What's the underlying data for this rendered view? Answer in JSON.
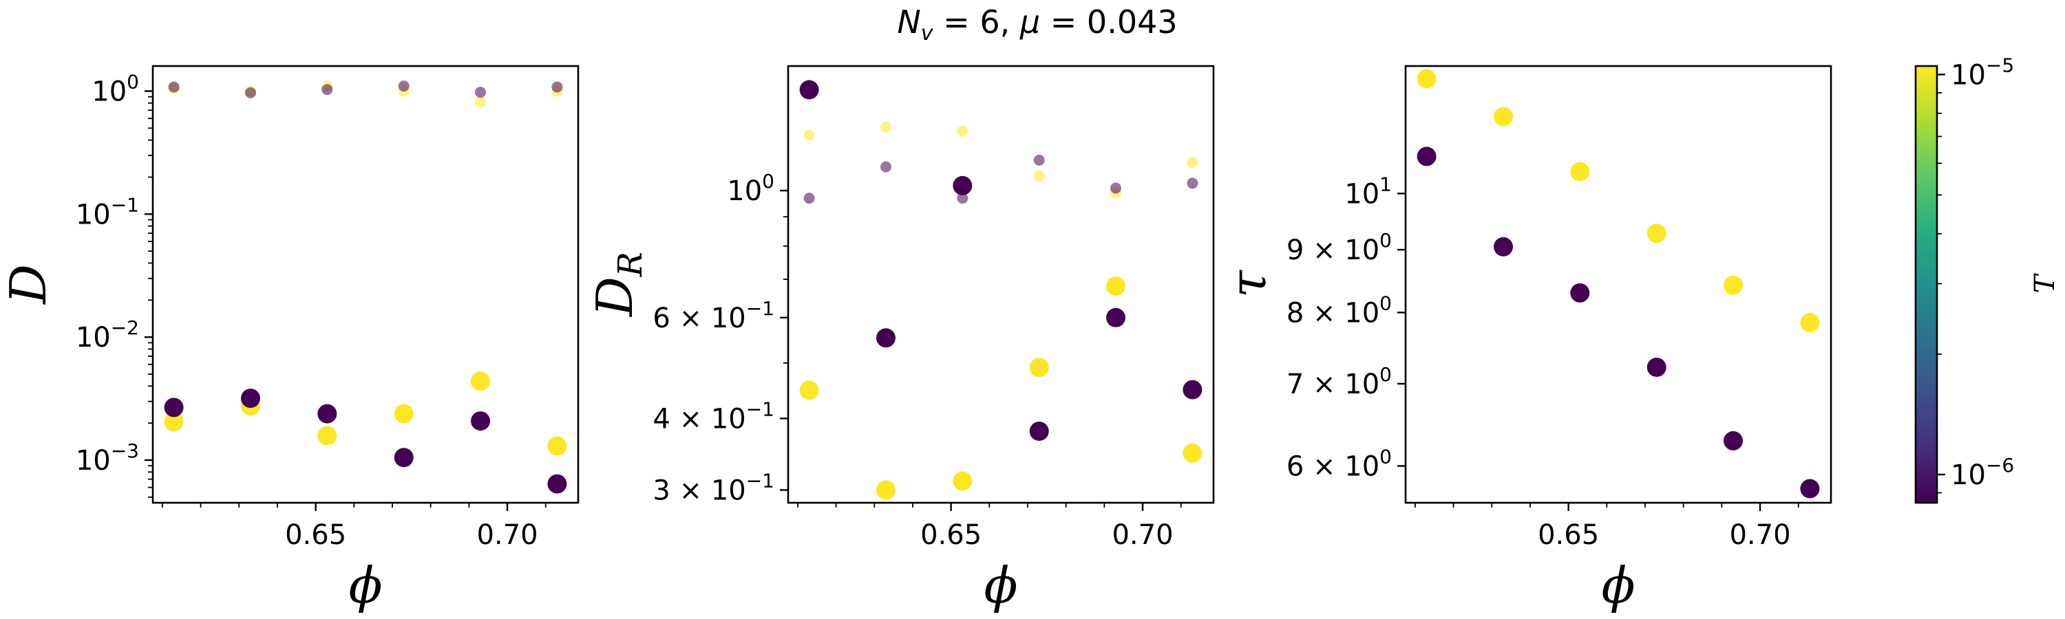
{
  "title": "N_v = 6, μ = 0.043",
  "title_parts": {
    "lhs1": "N",
    "sub1": "v",
    "eq1": " = 6, ",
    "lhs2": "μ",
    "eq2": " = 0.043"
  },
  "colors": {
    "low_T": "#440154",
    "high_T": "#fde725",
    "frame": "#000000"
  },
  "colorbar": {
    "label": "T",
    "scale": "log",
    "range": [
      8.5e-07,
      1.05e-05
    ],
    "ticks": [
      {
        "value": 1e-05,
        "base": "10",
        "exp": "−5"
      },
      {
        "value": 1e-06,
        "base": "10",
        "exp": "−6"
      }
    ],
    "colormap": "viridis"
  },
  "chart_data": [
    {
      "type": "scatter",
      "xlabel": "ϕ",
      "ylabel": "D",
      "ylabel_sub": "",
      "yscale": "log",
      "xlim": [
        0.6075,
        0.7185
      ],
      "ylim": [
        0.00045,
        1.6
      ],
      "xticks": [
        "0.65",
        "0.70"
      ],
      "yticks": [
        {
          "value": 1,
          "base": "10",
          "exp": "0"
        },
        {
          "value": 0.1,
          "base": "10",
          "exp": "−1"
        },
        {
          "value": 0.01,
          "base": "10",
          "exp": "−2"
        },
        {
          "value": 0.001,
          "base": "10",
          "exp": "−3"
        }
      ],
      "series": [
        {
          "T": "high",
          "size": "large",
          "alpha": 1.0,
          "x": [
            0.613,
            0.633,
            0.653,
            0.673,
            0.693,
            0.713
          ],
          "y": [
            0.00205,
            0.00275,
            0.00158,
            0.00238,
            0.00438,
            0.0013
          ]
        },
        {
          "T": "low",
          "size": "large",
          "alpha": 1.0,
          "x": [
            0.613,
            0.633,
            0.653,
            0.673,
            0.693,
            0.713
          ],
          "y": [
            0.00268,
            0.00318,
            0.00238,
            0.00105,
            0.00208,
            0.00064
          ]
        },
        {
          "T": "high",
          "size": "small",
          "alpha": 0.55,
          "x": [
            0.613,
            0.633,
            0.653,
            0.673,
            0.693,
            0.713
          ],
          "y": [
            1.05,
            1.0,
            1.1,
            1.0,
            0.81,
            1.0
          ]
        },
        {
          "T": "low",
          "size": "small",
          "alpha": 0.55,
          "x": [
            0.613,
            0.633,
            0.653,
            0.673,
            0.693,
            0.713
          ],
          "y": [
            1.08,
            0.97,
            1.03,
            1.1,
            0.98,
            1.08
          ]
        }
      ]
    },
    {
      "type": "scatter",
      "xlabel": "ϕ",
      "ylabel": "D",
      "ylabel_sub": "R",
      "yscale": "log",
      "xlim": [
        0.6075,
        0.7185
      ],
      "ylim": [
        0.285,
        1.65
      ],
      "xticks": [
        "0.65",
        "0.70"
      ],
      "yticks": [
        {
          "value": 1,
          "base": "10",
          "exp": "0"
        },
        {
          "value": 0.6,
          "base": "6 × 10",
          "exp": "−1"
        },
        {
          "value": 0.4,
          "base": "4 × 10",
          "exp": "−1"
        },
        {
          "value": 0.3,
          "base": "3 × 10",
          "exp": "−1"
        }
      ],
      "series": [
        {
          "T": "high",
          "size": "large",
          "alpha": 1.0,
          "x": [
            0.613,
            0.633,
            0.653,
            0.673,
            0.693,
            0.713
          ],
          "y": [
            0.448,
            0.3,
            0.311,
            0.491,
            0.681,
            0.348
          ]
        },
        {
          "T": "low",
          "size": "large",
          "alpha": 1.0,
          "x": [
            0.613,
            0.633,
            0.653,
            0.673,
            0.693,
            0.713
          ],
          "y": [
            1.5,
            0.553,
            1.02,
            0.38,
            0.6,
            0.449
          ]
        },
        {
          "T": "high",
          "size": "small",
          "alpha": 0.55,
          "x": [
            0.613,
            0.633,
            0.653,
            0.673,
            0.693,
            0.713
          ],
          "y": [
            1.25,
            1.29,
            1.27,
            1.06,
            0.99,
            1.12
          ]
        },
        {
          "T": "low",
          "size": "small",
          "alpha": 0.55,
          "x": [
            0.613,
            0.633,
            0.653,
            0.673,
            0.693,
            0.713
          ],
          "y": [
            0.97,
            1.1,
            0.97,
            1.13,
            1.01,
            1.03
          ]
        }
      ]
    },
    {
      "type": "scatter",
      "xlabel": "ϕ",
      "ylabel": "τ",
      "ylabel_sub": "",
      "yscale": "log",
      "xlim": [
        0.6075,
        0.7185
      ],
      "ylim": [
        5.6,
        12.7
      ],
      "xticks": [
        "0.65",
        "0.70"
      ],
      "yticks": [
        {
          "value": 10,
          "base": "10",
          "exp": "1"
        },
        {
          "value": 9,
          "base": "9 × 10",
          "exp": "0"
        },
        {
          "value": 8,
          "base": "8 × 10",
          "exp": "0"
        },
        {
          "value": 7,
          "base": "7 × 10",
          "exp": "0"
        },
        {
          "value": 6,
          "base": "6 × 10",
          "exp": "0"
        }
      ],
      "series": [
        {
          "T": "high",
          "size": "large",
          "alpha": 1.0,
          "x": [
            0.613,
            0.633,
            0.653,
            0.673,
            0.693,
            0.713
          ],
          "y": [
            12.4,
            11.55,
            10.42,
            9.28,
            8.42,
            7.85
          ]
        },
        {
          "T": "low",
          "size": "large",
          "alpha": 1.0,
          "x": [
            0.613,
            0.633,
            0.653,
            0.673,
            0.693,
            0.713
          ],
          "y": [
            10.72,
            9.05,
            8.3,
            7.22,
            6.29,
            5.75
          ]
        }
      ]
    }
  ]
}
